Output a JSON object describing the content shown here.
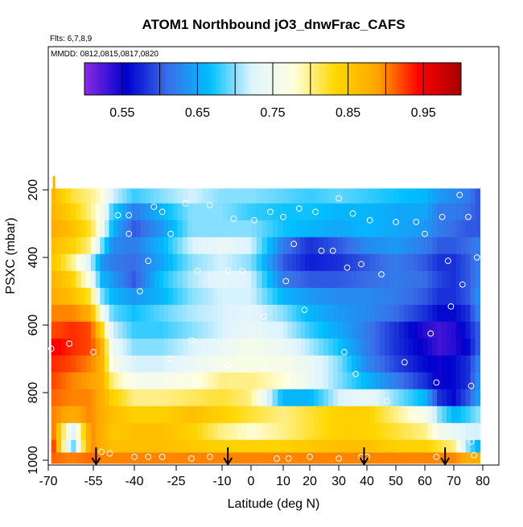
{
  "chart_data": {
    "type": "heatmap",
    "title": "ATOM1 Northbound jO3_dnwFrac_CAFS",
    "subtitle_flights": "Flts: 6,7,8,9",
    "subtitle_dates": "MMDD: 0812,0815,0817,0820",
    "xlabel": "Latitude (deg N)",
    "ylabel": "PSXC (mbar)",
    "x_ticks": [
      "-70",
      "-55",
      "-40",
      "-25",
      "-10",
      "0",
      "10",
      "20",
      "30",
      "40",
      "50",
      "60",
      "70",
      "80"
    ],
    "y_ticks": [
      "200",
      "400",
      "600",
      "800",
      "1000"
    ],
    "y_range": [
      1000,
      150
    ],
    "colorbar": {
      "range": [
        0.5,
        1.0
      ],
      "tick_labels": [
        "0.55",
        "0.65",
        "0.75",
        "0.85",
        "0.95"
      ],
      "tick_values": [
        0.55,
        0.65,
        0.75,
        0.85,
        0.95
      ],
      "colors": [
        "#8b2be2",
        "#0000cd",
        "#3a6fe8",
        "#00bfff",
        "#e0f4ff",
        "#ffffe0",
        "#ffd700",
        "#ffa500",
        "#ff0000",
        "#a50000"
      ]
    },
    "pressure_bands": [
      215,
      265,
      315,
      365,
      415,
      465,
      515,
      565,
      615,
      665,
      715,
      765,
      815,
      865,
      915,
      965,
      990
    ],
    "latitude_nodes": [
      -68,
      -62,
      -56,
      -52,
      -48,
      -40,
      -30,
      -20,
      -10,
      0,
      10,
      20,
      30,
      40,
      50,
      60,
      65,
      70,
      75,
      78
    ],
    "values": [
      [
        0.86,
        0.82,
        0.8,
        0.78,
        0.72,
        0.68,
        0.7,
        0.72,
        0.7,
        0.7,
        0.69,
        0.68,
        0.69,
        0.68,
        0.67,
        0.66,
        0.64,
        0.63,
        0.62,
        0.6
      ],
      [
        0.87,
        0.84,
        0.8,
        0.76,
        0.68,
        0.62,
        0.66,
        0.7,
        0.7,
        0.68,
        0.67,
        0.67,
        0.66,
        0.66,
        0.65,
        0.65,
        0.62,
        0.62,
        0.61,
        0.6
      ],
      [
        0.88,
        0.86,
        0.82,
        0.76,
        0.66,
        0.6,
        0.64,
        0.7,
        0.7,
        0.7,
        0.67,
        0.66,
        0.65,
        0.66,
        0.65,
        0.64,
        0.62,
        0.61,
        0.6,
        0.6
      ],
      [
        0.86,
        0.84,
        0.8,
        0.7,
        0.63,
        0.62,
        0.66,
        0.72,
        0.74,
        0.72,
        0.62,
        0.58,
        0.6,
        0.63,
        0.64,
        0.62,
        0.6,
        0.6,
        0.61,
        0.62
      ],
      [
        0.85,
        0.8,
        0.72,
        0.64,
        0.62,
        0.61,
        0.65,
        0.7,
        0.72,
        0.7,
        0.6,
        0.57,
        0.58,
        0.6,
        0.62,
        0.6,
        0.58,
        0.58,
        0.6,
        0.62
      ],
      [
        0.87,
        0.84,
        0.76,
        0.66,
        0.64,
        0.6,
        0.67,
        0.71,
        0.73,
        0.72,
        0.62,
        0.6,
        0.6,
        0.61,
        0.62,
        0.61,
        0.59,
        0.58,
        0.6,
        0.62
      ],
      [
        0.88,
        0.86,
        0.82,
        0.7,
        0.66,
        0.64,
        0.66,
        0.7,
        0.72,
        0.72,
        0.66,
        0.64,
        0.63,
        0.63,
        0.62,
        0.6,
        0.58,
        0.58,
        0.6,
        0.63
      ],
      [
        0.9,
        0.9,
        0.88,
        0.76,
        0.69,
        0.67,
        0.69,
        0.71,
        0.72,
        0.73,
        0.7,
        0.66,
        0.64,
        0.63,
        0.61,
        0.58,
        0.56,
        0.56,
        0.58,
        0.62
      ],
      [
        0.92,
        0.93,
        0.92,
        0.84,
        0.72,
        0.68,
        0.68,
        0.7,
        0.72,
        0.74,
        0.72,
        0.68,
        0.65,
        0.62,
        0.58,
        0.54,
        0.53,
        0.54,
        0.57,
        0.6
      ],
      [
        0.95,
        0.93,
        0.92,
        0.88,
        0.74,
        0.7,
        0.7,
        0.72,
        0.74,
        0.76,
        0.74,
        0.71,
        0.67,
        0.62,
        0.58,
        0.55,
        0.53,
        0.54,
        0.56,
        0.6
      ],
      [
        0.93,
        0.92,
        0.9,
        0.88,
        0.76,
        0.72,
        0.72,
        0.74,
        0.76,
        0.77,
        0.76,
        0.74,
        0.7,
        0.63,
        0.59,
        0.56,
        0.55,
        0.56,
        0.58,
        0.62
      ],
      [
        0.92,
        0.9,
        0.89,
        0.88,
        0.8,
        0.76,
        0.76,
        0.77,
        0.8,
        0.8,
        0.78,
        0.74,
        0.7,
        0.66,
        0.62,
        0.58,
        0.55,
        0.56,
        0.58,
        0.63
      ],
      [
        0.91,
        0.9,
        0.9,
        0.88,
        0.84,
        0.8,
        0.8,
        0.81,
        0.82,
        0.8,
        0.66,
        0.66,
        0.72,
        0.74,
        0.7,
        0.66,
        0.58,
        0.56,
        0.6,
        0.64
      ],
      [
        0.9,
        0.88,
        0.9,
        0.88,
        0.86,
        0.84,
        0.84,
        0.86,
        0.84,
        0.82,
        0.8,
        0.82,
        0.84,
        0.84,
        0.8,
        0.76,
        0.7,
        0.66,
        0.68,
        0.7
      ],
      [
        0.9,
        0.72,
        0.9,
        0.88,
        0.85,
        0.86,
        0.86,
        0.84,
        0.8,
        0.78,
        0.8,
        0.82,
        0.84,
        0.84,
        0.82,
        0.8,
        0.76,
        0.74,
        0.72,
        0.72
      ],
      [
        0.92,
        0.68,
        0.9,
        0.88,
        0.86,
        0.86,
        0.86,
        0.85,
        0.84,
        0.84,
        0.84,
        0.85,
        0.86,
        0.86,
        0.84,
        0.84,
        0.82,
        0.8,
        0.7,
        0.66
      ],
      [
        0.91,
        0.9,
        0.91,
        0.9,
        0.9,
        0.9,
        0.9,
        0.9,
        0.9,
        0.9,
        0.9,
        0.9,
        0.9,
        0.9,
        0.9,
        0.9,
        0.9,
        0.9,
        0.88,
        0.88
      ]
    ],
    "sample_points": [
      [
        -69,
        670
      ],
      [
        -63,
        655
      ],
      [
        -55,
        680
      ],
      [
        -52,
        975
      ],
      [
        -49,
        980
      ],
      [
        -46,
        275
      ],
      [
        -42,
        330
      ],
      [
        -42,
        275
      ],
      [
        -38,
        500
      ],
      [
        -35,
        410
      ],
      [
        -33,
        250
      ],
      [
        -30,
        265
      ],
      [
        -27,
        700
      ],
      [
        -27,
        330
      ],
      [
        -22,
        240
      ],
      [
        -20,
        645
      ],
      [
        -18,
        440
      ],
      [
        -14,
        245
      ],
      [
        -14,
        990
      ],
      [
        -8,
        440
      ],
      [
        -6,
        285
      ],
      [
        -3,
        440
      ],
      [
        1,
        290
      ],
      [
        4,
        575
      ],
      [
        6,
        265
      ],
      [
        10,
        280
      ],
      [
        11,
        470
      ],
      [
        14,
        360
      ],
      [
        12,
        995
      ],
      [
        16,
        255
      ],
      [
        18,
        555
      ],
      [
        20,
        990
      ],
      [
        22,
        265
      ],
      [
        24,
        380
      ],
      [
        28,
        380
      ],
      [
        30,
        225
      ],
      [
        32,
        680
      ],
      [
        33,
        430
      ],
      [
        35,
        270
      ],
      [
        36,
        745
      ],
      [
        38,
        420
      ],
      [
        41,
        290
      ],
      [
        45,
        450
      ],
      [
        47,
        825
      ],
      [
        50,
        295
      ],
      [
        53,
        710
      ],
      [
        57,
        295
      ],
      [
        60,
        330
      ],
      [
        62,
        625
      ],
      [
        64,
        770
      ],
      [
        66,
        280
      ],
      [
        68,
        410
      ],
      [
        69,
        545
      ],
      [
        72,
        215
      ],
      [
        73,
        480
      ],
      [
        75,
        280
      ],
      [
        76,
        780
      ],
      [
        76,
        945
      ],
      [
        78,
        400
      ],
      [
        77,
        985
      ],
      [
        -8,
        720
      ],
      [
        -40,
        990
      ],
      [
        -35,
        990
      ],
      [
        -30,
        990
      ],
      [
        -20,
        995
      ],
      [
        8,
        995
      ],
      [
        30,
        995
      ],
      [
        38,
        990
      ],
      [
        40,
        990
      ],
      [
        64,
        990
      ]
    ],
    "arrows_latitude": [
      -54,
      -8,
      39,
      67
    ]
  }
}
